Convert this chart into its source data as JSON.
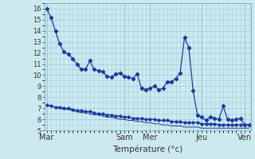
{
  "xlabel": "Température (°c)",
  "background_color": "#cde9f0",
  "grid_color": "#9fcfdc",
  "line_color": "#1a3a9e",
  "x_tick_labels": [
    "Mar",
    "Sam",
    "Mer",
    "Jeu",
    "Ven"
  ],
  "x_tick_positions": [
    0,
    18,
    24,
    36,
    46
  ],
  "ylim": [
    5,
    16.5
  ],
  "yticks": [
    5,
    6,
    7,
    8,
    9,
    10,
    11,
    12,
    13,
    14,
    15,
    16
  ],
  "n_points": 48,
  "series1": [
    16.0,
    15.2,
    14.0,
    12.8,
    12.1,
    11.9,
    11.5,
    11.0,
    10.5,
    10.5,
    11.3,
    10.5,
    10.4,
    10.3,
    9.9,
    9.8,
    10.1,
    10.2,
    9.9,
    9.8,
    9.7,
    10.1,
    8.8,
    8.7,
    8.8,
    9.0,
    8.7,
    8.8,
    9.4,
    9.4,
    9.7,
    10.2,
    13.4,
    12.5,
    8.6,
    6.4,
    6.2,
    5.9,
    6.2,
    6.1,
    6.0,
    7.2,
    6.0,
    5.9,
    6.0,
    6.1,
    5.5,
    5.5
  ],
  "series2": [
    7.3,
    7.2,
    7.1,
    7.1,
    7.0,
    7.0,
    6.9,
    6.8,
    6.8,
    6.7,
    6.7,
    6.6,
    6.5,
    6.5,
    6.4,
    6.4,
    6.3,
    6.3,
    6.2,
    6.2,
    6.1,
    6.1,
    6.1,
    6.0,
    6.0,
    6.0,
    5.9,
    5.9,
    5.9,
    5.8,
    5.8,
    5.8,
    5.7,
    5.7,
    5.7,
    5.7,
    5.6,
    5.6,
    5.6,
    5.6,
    5.5,
    5.5,
    5.5,
    5.5,
    5.5,
    5.5,
    5.5,
    5.5
  ],
  "series3": [
    7.3,
    7.2,
    7.1,
    7.0,
    6.9,
    6.9,
    6.8,
    6.7,
    6.6,
    6.6,
    6.5,
    6.4,
    6.4,
    6.3,
    6.2,
    6.2,
    6.1,
    6.0,
    6.0,
    5.9,
    5.9,
    5.8,
    5.8,
    5.7,
    5.7,
    5.6,
    5.6,
    5.5,
    5.5,
    5.4,
    5.4,
    5.4,
    5.3,
    5.3,
    5.3,
    5.3,
    5.2,
    5.2,
    5.2,
    5.2,
    5.2,
    5.2,
    5.2,
    5.2,
    5.2,
    5.2,
    5.2,
    5.2
  ]
}
